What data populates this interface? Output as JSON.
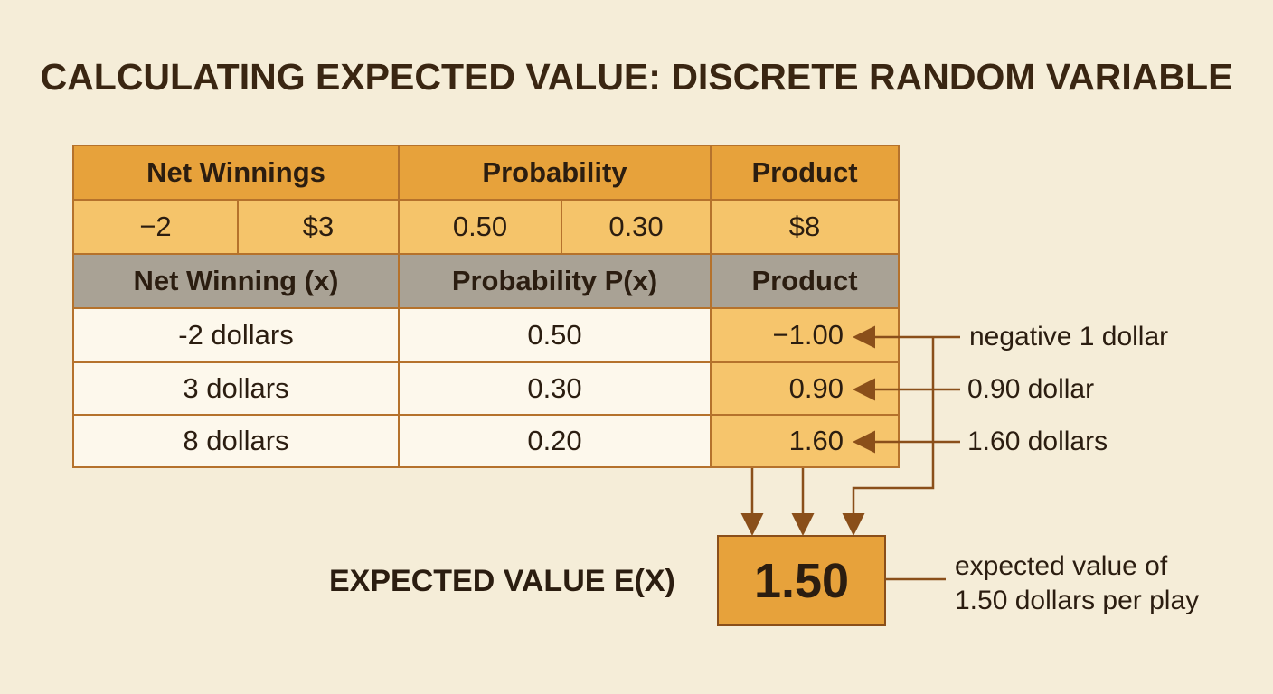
{
  "title": "CALCULATING EXPECTED VALUE: DISCRETE RANDOM VARIABLE",
  "table": {
    "header_top": [
      "Net Winnings",
      "Probability",
      "Product"
    ],
    "header_values": [
      "−2",
      "$3",
      "0.50",
      "0.30",
      "$8"
    ],
    "header": [
      "Net Winning (x)",
      "Probability P(x)",
      "Product"
    ],
    "rows": [
      [
        "-2 dollars",
        "0.50",
        "−1.00"
      ],
      [
        "3 dollars",
        "0.30",
        "0.90"
      ],
      [
        "8 dollars",
        "0.20",
        "1.60"
      ]
    ]
  },
  "annotations": [
    "negative 1 dollar",
    "0.90 dollar",
    "1.60 dollars"
  ],
  "result": {
    "label": "EXPECTED VALUE E(X)",
    "value": "1.50",
    "note": [
      "expected value of",
      "1.50 dollars per play"
    ]
  }
}
